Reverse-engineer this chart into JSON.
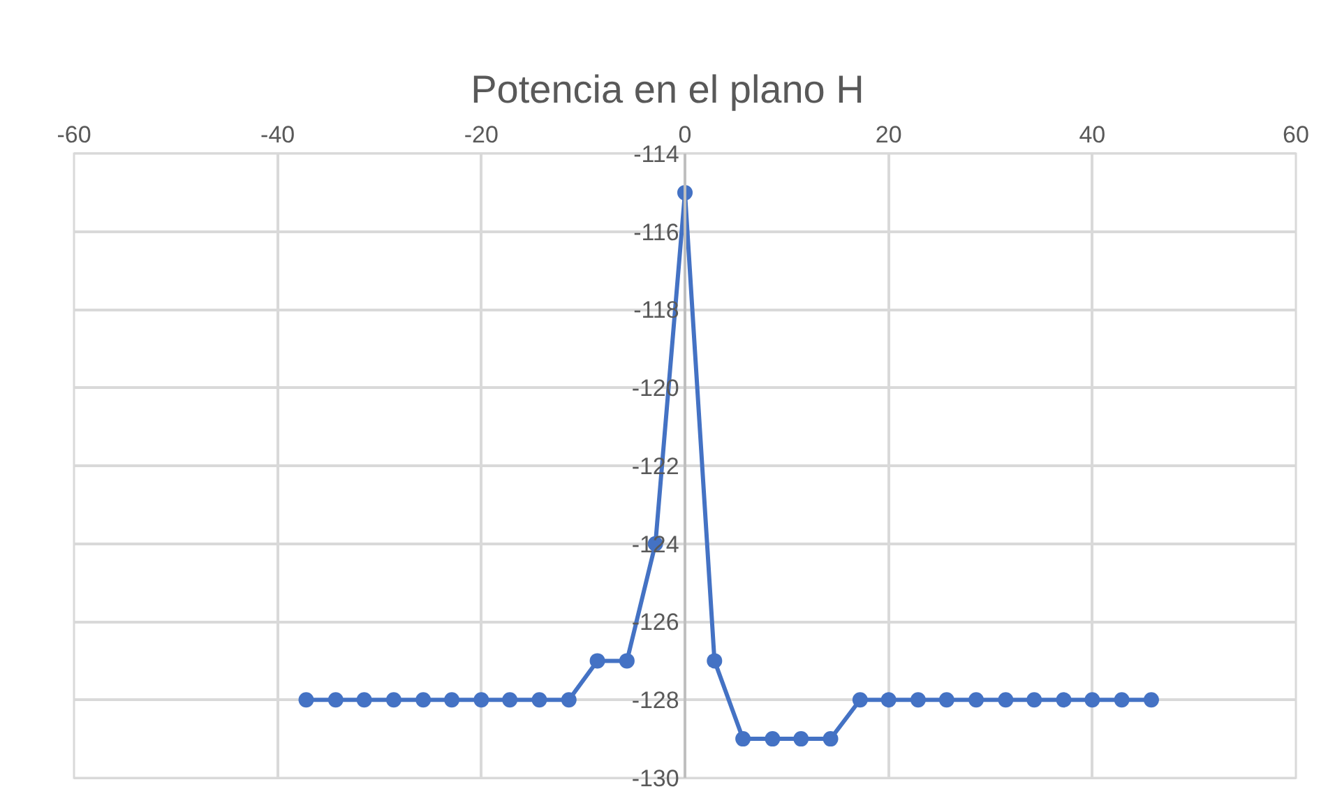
{
  "chart_data": {
    "type": "line",
    "title": "Potencia en el plano H",
    "x": [
      -37.2,
      -34.3,
      -31.5,
      -28.6,
      -25.7,
      -22.9,
      -20.0,
      -17.2,
      -14.3,
      -11.4,
      -8.6,
      -5.7,
      -2.9,
      0,
      2.9,
      5.7,
      8.6,
      11.4,
      14.3,
      17.2,
      20.0,
      22.9,
      25.7,
      28.6,
      31.5,
      34.3,
      37.2,
      40.0,
      42.9,
      45.8
    ],
    "series": [
      {
        "color": "#4472c4",
        "values": [
          -128,
          -128,
          -128,
          -128,
          -128,
          -128,
          -128,
          -128,
          -128,
          -128,
          -127,
          -127,
          -124,
          -115,
          -127,
          -129,
          -129,
          -129,
          -129,
          -128,
          -128,
          -128,
          -128,
          -128,
          -128,
          -128,
          -128,
          -128,
          -128,
          -128
        ]
      }
    ],
    "xlim": [
      -60,
      60
    ],
    "xticks": [
      -60,
      -40,
      -20,
      0,
      20,
      40,
      60
    ],
    "ylim": [
      -130,
      -114
    ],
    "yticks": [
      -130,
      -128,
      -126,
      -124,
      -122,
      -120,
      -118,
      -116,
      -114
    ],
    "grid": true,
    "marker": "circle",
    "line_style": "solid"
  }
}
